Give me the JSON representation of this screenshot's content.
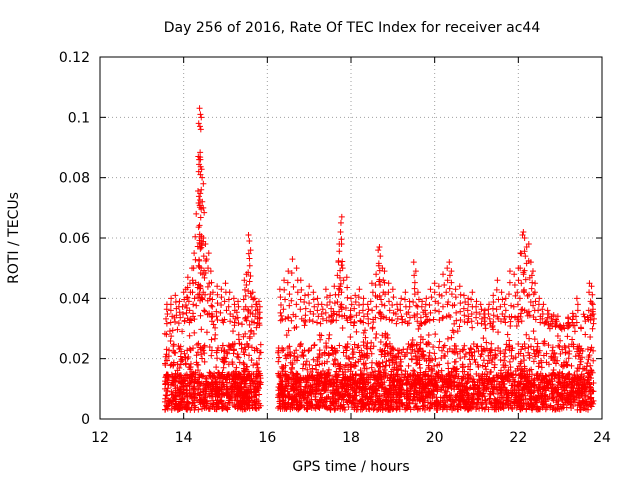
{
  "chart_data": {
    "type": "scatter",
    "title": "Day 256 of 2016, Rate Of TEC Index for receiver ac44",
    "xlabel": "GPS time / hours",
    "ylabel": "ROTI / TECUs",
    "xlim": [
      12,
      24
    ],
    "ylim": [
      0,
      0.12
    ],
    "xticks": [
      12,
      14,
      16,
      18,
      20,
      22,
      24
    ],
    "xtick_labels": [
      "12",
      "14",
      "16",
      "18",
      "20",
      "22",
      "24"
    ],
    "yticks": [
      0,
      0.02,
      0.04,
      0.06,
      0.08,
      0.1,
      0.12
    ],
    "ytick_labels": [
      "0",
      "0.02",
      "0.04",
      "0.06",
      "0.08",
      "0.1",
      "0.12"
    ],
    "grid": true,
    "marker": "+",
    "color": "#ff0000",
    "series": [
      {
        "name": "ROTI",
        "segments": [
          {
            "x_start": 13.55,
            "x_end": 15.85
          },
          {
            "x_start": 16.25,
            "x_end": 23.8
          }
        ],
        "points": [
          [
            14.38,
            0.103
          ],
          [
            14.4,
            0.101
          ],
          [
            14.42,
            0.1
          ],
          [
            14.36,
            0.098
          ],
          [
            14.39,
            0.097
          ],
          [
            14.41,
            0.096
          ],
          [
            14.35,
            0.087
          ],
          [
            14.37,
            0.086
          ],
          [
            14.36,
            0.082
          ],
          [
            14.4,
            0.081
          ],
          [
            14.44,
            0.08
          ],
          [
            14.47,
            0.078
          ],
          [
            14.42,
            0.076
          ],
          [
            14.3,
            0.068
          ],
          [
            14.47,
            0.06
          ],
          [
            14.52,
            0.058
          ],
          [
            14.55,
            0.053
          ],
          [
            14.25,
            0.055
          ],
          [
            14.2,
            0.05
          ],
          [
            14.15,
            0.045
          ],
          [
            14.05,
            0.043
          ],
          [
            14.1,
            0.047
          ],
          [
            14.6,
            0.055
          ],
          [
            14.65,
            0.049
          ],
          [
            13.6,
            0.038
          ],
          [
            13.7,
            0.04
          ],
          [
            13.8,
            0.041
          ],
          [
            13.9,
            0.039
          ],
          [
            14.0,
            0.042
          ],
          [
            14.7,
            0.042
          ],
          [
            14.8,
            0.044
          ],
          [
            14.9,
            0.043
          ],
          [
            15.0,
            0.045
          ],
          [
            15.1,
            0.042
          ],
          [
            15.2,
            0.04
          ],
          [
            15.3,
            0.039
          ],
          [
            15.55,
            0.061
          ],
          [
            15.57,
            0.059
          ],
          [
            15.6,
            0.056
          ],
          [
            15.5,
            0.048
          ],
          [
            15.45,
            0.046
          ],
          [
            15.65,
            0.042
          ],
          [
            15.7,
            0.04
          ],
          [
            15.75,
            0.038
          ],
          [
            15.8,
            0.039
          ],
          [
            16.3,
            0.043
          ],
          [
            16.4,
            0.046
          ],
          [
            16.5,
            0.049
          ],
          [
            16.6,
            0.053
          ],
          [
            16.7,
            0.05
          ],
          [
            16.8,
            0.046
          ],
          [
            16.9,
            0.041
          ],
          [
            17.0,
            0.044
          ],
          [
            17.1,
            0.042
          ],
          [
            17.2,
            0.04
          ],
          [
            17.3,
            0.038
          ],
          [
            17.4,
            0.043
          ],
          [
            17.5,
            0.041
          ],
          [
            17.6,
            0.044
          ],
          [
            17.7,
            0.052
          ],
          [
            17.75,
            0.062
          ],
          [
            17.78,
            0.067
          ],
          [
            17.76,
            0.065
          ],
          [
            17.72,
            0.058
          ],
          [
            17.8,
            0.05
          ],
          [
            17.9,
            0.047
          ],
          [
            18.0,
            0.04
          ],
          [
            18.1,
            0.041
          ],
          [
            18.2,
            0.043
          ],
          [
            18.3,
            0.04
          ],
          [
            18.4,
            0.038
          ],
          [
            18.5,
            0.045
          ],
          [
            18.6,
            0.048
          ],
          [
            18.65,
            0.056
          ],
          [
            18.68,
            0.057
          ],
          [
            18.7,
            0.054
          ],
          [
            18.75,
            0.05
          ],
          [
            18.8,
            0.049
          ],
          [
            18.9,
            0.045
          ],
          [
            19.0,
            0.043
          ],
          [
            19.1,
            0.038
          ],
          [
            19.2,
            0.04
          ],
          [
            19.3,
            0.042
          ],
          [
            19.4,
            0.039
          ],
          [
            19.5,
            0.052
          ],
          [
            19.55,
            0.049
          ],
          [
            19.6,
            0.042
          ],
          [
            19.7,
            0.039
          ],
          [
            19.8,
            0.04
          ],
          [
            19.9,
            0.043
          ],
          [
            20.0,
            0.045
          ],
          [
            20.1,
            0.044
          ],
          [
            20.2,
            0.048
          ],
          [
            20.3,
            0.05
          ],
          [
            20.35,
            0.052
          ],
          [
            20.4,
            0.049
          ],
          [
            20.5,
            0.043
          ],
          [
            20.6,
            0.044
          ],
          [
            20.7,
            0.041
          ],
          [
            20.8,
            0.04
          ],
          [
            20.9,
            0.042
          ],
          [
            21.0,
            0.039
          ],
          [
            21.1,
            0.038
          ],
          [
            21.2,
            0.036
          ],
          [
            21.3,
            0.038
          ],
          [
            21.4,
            0.041
          ],
          [
            21.5,
            0.046
          ],
          [
            21.6,
            0.042
          ],
          [
            21.7,
            0.04
          ],
          [
            21.8,
            0.049
          ],
          [
            21.9,
            0.048
          ],
          [
            22.0,
            0.05
          ],
          [
            22.05,
            0.055
          ],
          [
            22.1,
            0.061
          ],
          [
            22.12,
            0.062
          ],
          [
            22.15,
            0.06
          ],
          [
            22.2,
            0.057
          ],
          [
            22.25,
            0.058
          ],
          [
            22.3,
            0.052
          ],
          [
            22.35,
            0.049
          ],
          [
            22.4,
            0.045
          ],
          [
            22.5,
            0.04
          ],
          [
            22.6,
            0.038
          ],
          [
            22.7,
            0.036
          ],
          [
            22.8,
            0.034
          ],
          [
            22.9,
            0.033
          ],
          [
            23.0,
            0.031
          ],
          [
            23.1,
            0.03
          ],
          [
            23.2,
            0.032
          ],
          [
            23.3,
            0.035
          ],
          [
            23.4,
            0.04
          ],
          [
            23.5,
            0.03
          ],
          [
            23.6,
            0.028
          ],
          [
            23.7,
            0.045
          ],
          [
            23.75,
            0.044
          ],
          [
            23.78,
            0.038
          ]
        ],
        "dense_band": {
          "y_min": 0.003,
          "y_typical_max": 0.035
        }
      }
    ]
  }
}
